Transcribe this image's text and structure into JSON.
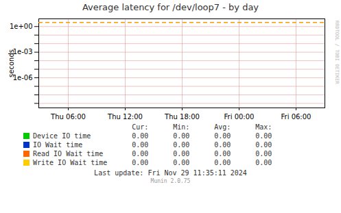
{
  "chart_data": {
    "type": "line",
    "title": "Average latency for /dev/loop7  -  by day",
    "y_label": "seconds",
    "categories": [
      "Thu 06:00",
      "Thu 12:00",
      "Thu 18:00",
      "Fri 00:00",
      "Fri 06:00"
    ],
    "log": "y",
    "ylim": [
      3e-10,
      8.0
    ],
    "yticks": [
      {
        "value": 1e-09,
        "label": null
      },
      {
        "value": 1e-08,
        "label": null
      },
      {
        "value": 1e-07,
        "label": null
      },
      {
        "value": 1e-06,
        "label": "1e-06"
      },
      {
        "value": 1e-05,
        "label": null
      },
      {
        "value": 0.0001,
        "label": null
      },
      {
        "value": 0.001,
        "label": "1e-03"
      },
      {
        "value": 0.01,
        "label": null
      },
      {
        "value": 0.1,
        "label": null
      },
      {
        "value": 1,
        "label": "1e+00"
      }
    ],
    "grid": true,
    "hlines": [
      {
        "value": 3.0,
        "color": "#ff9900",
        "line_style": "dashed"
      }
    ],
    "table": {
      "columns": [
        "Cur:",
        "Min:",
        "Avg:",
        "Max:"
      ],
      "rows": [
        {
          "name": "Device IO time",
          "color": "#00cc00",
          "values": [
            0,
            0,
            0,
            0
          ],
          "value_labels": [
            "0.00",
            "0.00",
            "0.00",
            "0.00"
          ]
        },
        {
          "name": "IO Wait time",
          "color": "#0033cc",
          "values": [
            0,
            0,
            0,
            0
          ],
          "value_labels": [
            "0.00",
            "0.00",
            "0.00",
            "0.00"
          ]
        },
        {
          "name": "Read IO Wait time",
          "color": "#ff6600",
          "values": [
            0,
            0,
            0,
            0
          ],
          "value_labels": [
            "0.00",
            "0.00",
            "0.00",
            "0.00"
          ]
        },
        {
          "name": "Write IO Wait time",
          "color": "#ffcc00",
          "values": [
            0,
            0,
            0,
            0
          ],
          "value_labels": [
            "0.00",
            "0.00",
            "0.00",
            "0.00"
          ]
        }
      ]
    },
    "footer": [
      "Last update: Fri Nov 29 11:35:11 2024",
      "Munin 2.0.75"
    ],
    "watermark": "RRDTOOL / TOBI OETIKER"
  }
}
